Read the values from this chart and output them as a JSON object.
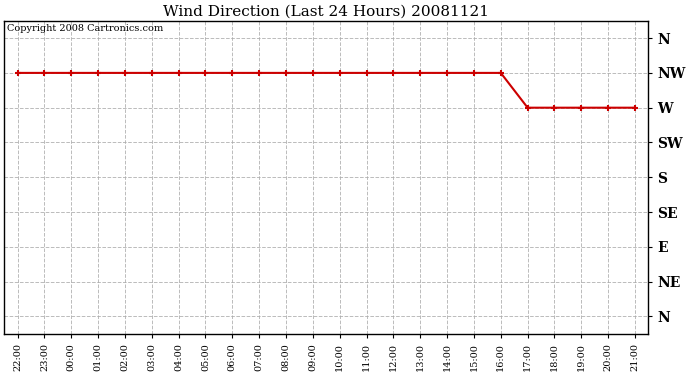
{
  "title": "Wind Direction (Last 24 Hours) 20081121",
  "copyright_text": "Copyright 2008 Cartronics.com",
  "x_labels": [
    "22:00",
    "23:00",
    "00:00",
    "01:00",
    "02:00",
    "03:00",
    "04:00",
    "05:00",
    "06:00",
    "07:00",
    "08:00",
    "09:00",
    "10:00",
    "11:00",
    "12:00",
    "13:00",
    "14:00",
    "15:00",
    "16:00",
    "17:00",
    "18:00",
    "19:00",
    "20:00",
    "21:00"
  ],
  "y_tick_positions": [
    8,
    7,
    6,
    5,
    4,
    3,
    2,
    1,
    0
  ],
  "y_tick_labels": [
    "N",
    "NW",
    "W",
    "SW",
    "S",
    "SE",
    "E",
    "NE",
    "N"
  ],
  "wind_data_values": [
    7,
    7,
    7,
    7,
    7,
    7,
    7,
    7,
    7,
    7,
    7,
    7,
    7,
    7,
    7,
    7,
    7,
    7,
    7,
    6,
    6,
    6,
    6,
    6
  ],
  "line_color": "#cc0000",
  "marker": "+",
  "marker_size": 5,
  "marker_linewidth": 1.5,
  "line_width": 1.5,
  "grid_color": "#aaaaaa",
  "grid_linestyle": "--",
  "background_color": "#ffffff",
  "plot_bg_color": "#ffffff",
  "title_fontsize": 11,
  "copyright_fontsize": 7,
  "tick_fontsize": 7,
  "ytick_fontsize": 10,
  "font_family": "serif",
  "font_weight": "bold"
}
